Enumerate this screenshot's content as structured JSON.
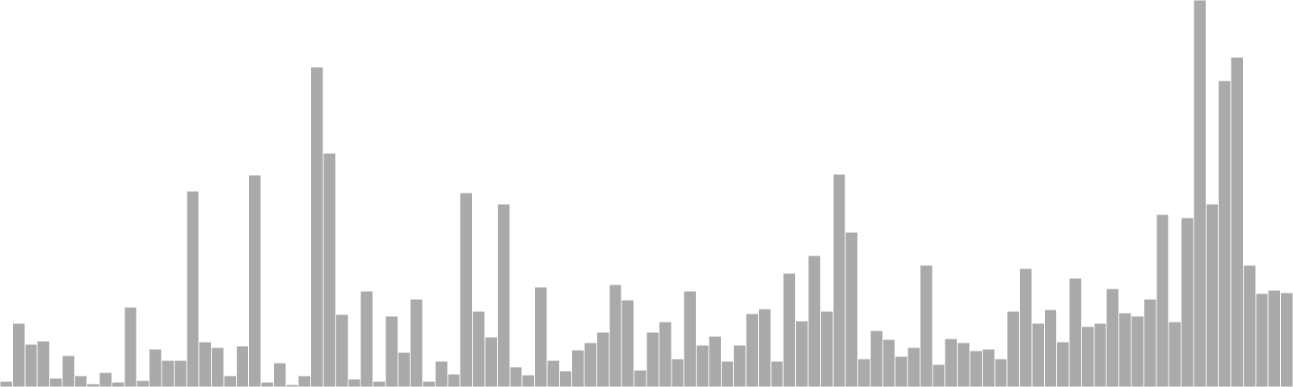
{
  "chart_data": {
    "type": "bar",
    "title": "",
    "xlabel": "",
    "ylabel": "",
    "grid": false,
    "legend": "none",
    "ylim": [
      0,
      480
    ],
    "bar_color": "#aaaaaa",
    "bar_edge_color": "#ffffff",
    "values": [
      7,
      79,
      53,
      57,
      11,
      39,
      14,
      4,
      18,
      6,
      99,
      8,
      47,
      33,
      33,
      243,
      56,
      49,
      14,
      51,
      263,
      6,
      30,
      3,
      14,
      397,
      290,
      90,
      10,
      119,
      7,
      88,
      43,
      109,
      7,
      32,
      16,
      241,
      94,
      62,
      227,
      25,
      15,
      124,
      33,
      20,
      46,
      55,
      68,
      127,
      108,
      21,
      68,
      81,
      35,
      119,
      52,
      63,
      32,
      52,
      91,
      97,
      32,
      141,
      82,
      163,
      94,
      264,
      192,
      35,
      70,
      59,
      38,
      49,
      151,
      28,
      60,
      55,
      45,
      47,
      35,
      94,
      147,
      79,
      96,
      56,
      135,
      75,
      79,
      122,
      92,
      88,
      109,
      214,
      81,
      210,
      480,
      227,
      380,
      409,
      151,
      116,
      120,
      117
    ]
  }
}
